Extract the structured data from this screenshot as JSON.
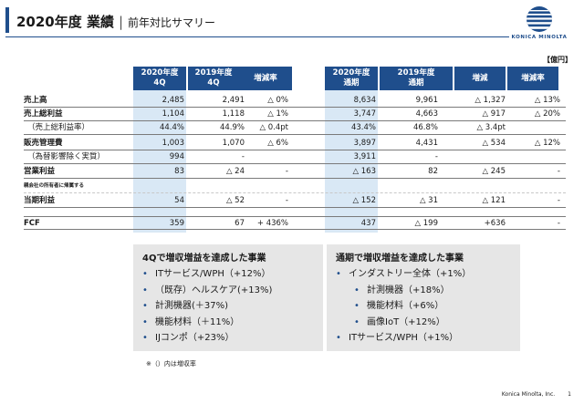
{
  "header": {
    "title_main": "2020年度 業績",
    "separator": "|",
    "title_sub": "前年対比サマリー",
    "logo_text": "KONICA MINOLTA",
    "accent_color": "#1f4e8c"
  },
  "unit": "【億円】",
  "table": {
    "columns": [
      "2020年度\n4Q",
      "2019年度\n4Q",
      "増減率",
      "2020年度\n通期",
      "2019年度\n通期",
      "増減",
      "増減率"
    ],
    "rows": [
      {
        "label": "売上高",
        "values": [
          "2,485",
          "2,491",
          "△ 0%",
          "8,634",
          "9,961",
          "△ 1,327",
          "△ 13%"
        ]
      },
      {
        "label": "売上総利益",
        "values": [
          "1,104",
          "1,118",
          "△ 1%",
          "3,747",
          "4,663",
          "△ 917",
          "△ 20%"
        ]
      },
      {
        "label": "（売上総利益率）",
        "values": [
          "44.4%",
          "44.9%",
          "△ 0.4pt",
          "43.4%",
          "46.8%",
          "△ 3.4pt",
          ""
        ]
      },
      {
        "label": "販売管理費",
        "values": [
          "1,003",
          "1,070",
          "△ 6%",
          "3,897",
          "4,431",
          "△ 534",
          "△ 12%"
        ]
      },
      {
        "label": "（為替影響除く実質）",
        "values": [
          "994",
          "-",
          "",
          "3,911",
          "-",
          "",
          ""
        ]
      },
      {
        "label": "営業利益",
        "values": [
          "83",
          "△ 24",
          "-",
          "△ 163",
          "82",
          "△ 245",
          "-"
        ]
      },
      {
        "label": "親会社の所有者に帰属する",
        "values": [
          "",
          "",
          "",
          "",
          "",
          "",
          ""
        ]
      },
      {
        "label": "当期利益",
        "values": [
          "54",
          "△ 52",
          "-",
          "△ 152",
          "△ 31",
          "△ 121",
          "-"
        ]
      },
      {
        "label": "FCF",
        "values": [
          "359",
          "67",
          "+ 436%",
          "437",
          "△ 199",
          "+636",
          "-"
        ]
      }
    ]
  },
  "box_left": {
    "title": "4Qで増収増益を達成した事業",
    "items": [
      "ITサービス/WPH（+12%）",
      "（既存）ヘルスケア(+13%)",
      "計測機器(＋37%)",
      "機能材料（＋11%）",
      "IJコンポ（+23%）"
    ]
  },
  "box_right": {
    "title": "通期で増収増益を達成した事業",
    "items": [
      {
        "text": "インダストリー全体（+1%）",
        "sub": false
      },
      {
        "text": "計測機器（+18%）",
        "sub": true
      },
      {
        "text": "機能材料（+6%）",
        "sub": true
      },
      {
        "text": "画像IoT（+12%）",
        "sub": true
      },
      {
        "text": "ITサービス/WPH（+1%）",
        "sub": false
      }
    ]
  },
  "note": "※（）内は増収率",
  "footer": {
    "company": "Konica Minolta, Inc.",
    "page": "1"
  }
}
